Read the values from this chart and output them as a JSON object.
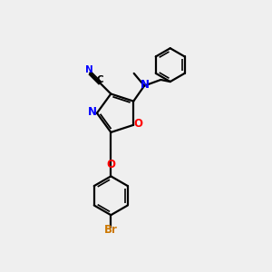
{
  "background_color": "#efefef",
  "bond_color": "#000000",
  "atom_colors": {
    "N": "#0000ff",
    "O": "#ff0000",
    "Br": "#cc7700",
    "C_label": "#000000"
  },
  "figsize": [
    3.0,
    3.0
  ],
  "dpi": 100,
  "lw": 1.6,
  "lw_double_inner": 1.3
}
